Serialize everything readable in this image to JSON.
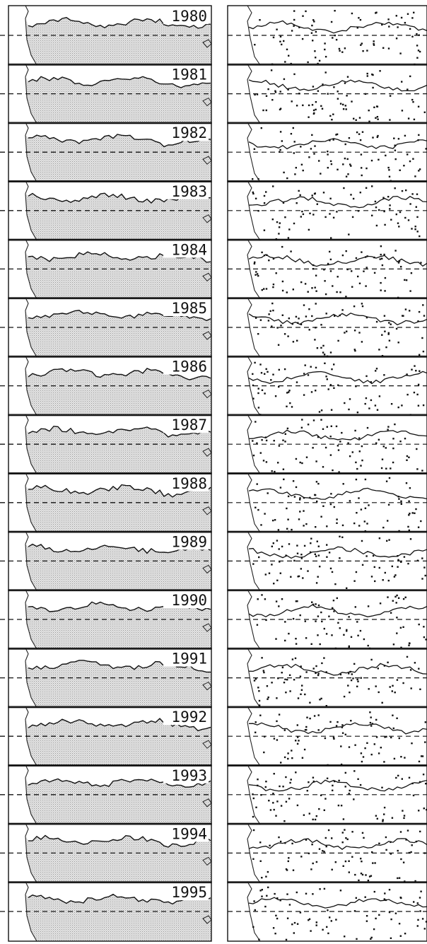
{
  "figure": {
    "years": [
      "1980",
      "1981",
      "1982",
      "1983",
      "1984",
      "1985",
      "1986",
      "1987",
      "1988",
      "1989",
      "1990",
      "1991",
      "1992",
      "1993",
      "1994",
      "1995"
    ]
  }
}
